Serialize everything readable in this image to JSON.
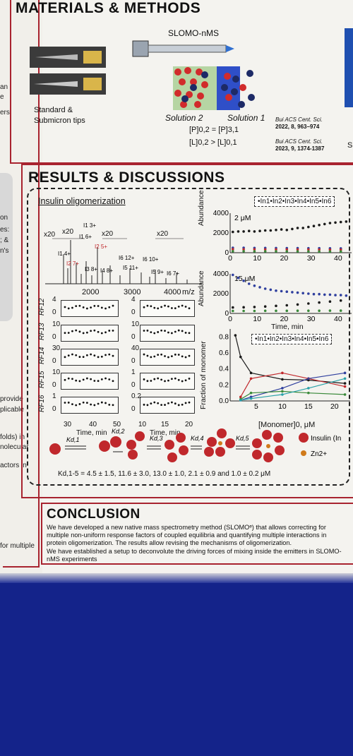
{
  "left_column": {
    "snippets": [
      "an",
      "e",
      "ers",
      "on",
      "es:",
      "; &",
      "n's",
      "provide",
      "plicable",
      "folds) in",
      "nolecular",
      "actors  in",
      "for multiple"
    ]
  },
  "methods": {
    "heading": "MATERIALS  & METHODS",
    "device_label": "SLOMO-nMS",
    "tips_label_1": "Standard &",
    "tips_label_2": "Submicron tips",
    "solution2": "Solution 2",
    "solution1": "Solution 1",
    "eq1": "[P]0,2 = [P]3,1",
    "eq2": "[L]0,2 > [L]0,1",
    "ref1_a": "Bui ACS Cent. Sci.",
    "ref1_b": "2022, 8, 963–974",
    "ref2_a": "Bui ACS Cent. Sci.",
    "ref2_b": "2023, 9, 1374-1387",
    "right_edge": "S"
  },
  "results": {
    "heading": "RESULTS & DISCUSSIONS",
    "subheading": "Insulin oligomerization",
    "ms_scale_labels": [
      "x20",
      "x20",
      "x20",
      "x20"
    ],
    "ms_axis": {
      "ticks": [
        "2000",
        "3000",
        "4000"
      ],
      "unit": "m/z"
    },
    "ms_peaks_labels": [
      "I1 3+",
      "I1 4+",
      "I1 6+",
      "I2 5+",
      "I2 7+",
      "I3 8+",
      "I4 8+",
      "I6 12+",
      "I5 11+",
      "I6 10+",
      "I5 9+",
      "I6 7+"
    ],
    "rf_panels_left": [
      {
        "label": "RF12",
        "ymax": "4",
        "ymin": "0"
      },
      {
        "label": "RF13",
        "ymax": "10",
        "ymin": "0"
      },
      {
        "label": "RF14",
        "ymax": "30",
        "ymin": "0"
      },
      {
        "label": "RF15",
        "ymax": "10",
        "ymin": "0"
      },
      {
        "label": "RF16",
        "ymax": "1",
        "ymin": "0"
      }
    ],
    "rf_panels_right": [
      {
        "ymax": "4",
        "ymin": "0"
      },
      {
        "ymax": "10",
        "ymin": "0"
      },
      {
        "ymax": "40",
        "ymin": "0"
      },
      {
        "ymax": "1",
        "ymin": "0"
      },
      {
        "ymax": "0.2",
        "ymin": "0"
      }
    ],
    "rf_xticks_left": [
      "30",
      "40",
      "50"
    ],
    "rf_xticks_right": [
      "10",
      "15",
      "20"
    ],
    "rf_xlabel": "Time, min",
    "legend_top": "•In1•In2•In3•In4•In5•In6",
    "legend_mid": "•In1•In2•In3•In4•In5•In6",
    "abundance_label": "Abundance",
    "monomer_label": "Fraction of monomer",
    "monomer_xlabel": "[Monomer]0, μM",
    "time_label": "Time, min",
    "colors": {
      "red": "#c0282c",
      "blue": "#2f3f9e",
      "black": "#1a1a1a",
      "green": "#3a8a3a",
      "teal": "#2aa2a8",
      "orange": "#d07a1a"
    }
  },
  "chart_data": [
    {
      "type": "scatter",
      "title": "2 μM",
      "xlabel": "",
      "ylabel": "Abundance",
      "xlim": [
        0,
        45
      ],
      "ylim": [
        0,
        4000
      ],
      "yticks": [
        "4000",
        "2000",
        "0"
      ],
      "xticks": [
        "0",
        "10",
        "20",
        "30",
        "40"
      ],
      "series": [
        {
          "color": "#1a1a1a",
          "x": [
            1,
            3,
            5,
            7,
            9,
            11,
            13,
            15,
            17,
            19,
            21,
            23,
            25,
            27,
            29,
            31,
            33,
            35,
            37,
            39,
            41,
            43
          ],
          "y": [
            2100,
            2150,
            2150,
            2200,
            2150,
            2200,
            2250,
            2250,
            2300,
            2350,
            2300,
            2400,
            2500,
            2500,
            2600,
            2700,
            2800,
            2900,
            3000,
            3050,
            3100,
            3150
          ]
        },
        {
          "color": "#2f3f9e",
          "x": [
            1,
            5,
            9,
            13,
            17,
            21,
            25,
            29,
            33,
            37,
            41
          ],
          "y": [
            500,
            500,
            480,
            480,
            470,
            460,
            460,
            450,
            450,
            440,
            430
          ]
        },
        {
          "color": "#c0282c",
          "x": [
            1,
            5,
            9,
            13,
            17,
            21,
            25,
            29,
            33,
            37,
            41
          ],
          "y": [
            350,
            340,
            340,
            330,
            330,
            320,
            320,
            320,
            310,
            300,
            300
          ]
        },
        {
          "color": "#3a8a3a",
          "x": [
            1,
            5,
            9,
            13,
            17,
            21,
            25,
            29,
            33,
            37,
            41
          ],
          "y": [
            150,
            150,
            140,
            140,
            140,
            130,
            130,
            130,
            120,
            120,
            120
          ]
        }
      ]
    },
    {
      "type": "scatter",
      "title": "15 μM",
      "xlabel": "Time, min",
      "ylabel": "Abundance",
      "xlim": [
        0,
        45
      ],
      "ylim": [
        0,
        4000
      ],
      "yticks": [
        "4000",
        "2000",
        "0"
      ],
      "xticks": [
        "0",
        "10",
        "20",
        "30",
        "40"
      ],
      "series": [
        {
          "color": "#2f3f9e",
          "x": [
            1,
            3,
            5,
            7,
            9,
            11,
            13,
            15,
            17,
            19,
            21,
            23,
            25,
            27,
            29,
            31,
            33,
            35,
            37,
            39,
            41,
            43
          ],
          "y": [
            3900,
            3600,
            3300,
            3000,
            2800,
            2650,
            2500,
            2400,
            2300,
            2250,
            2200,
            2150,
            2100,
            2050,
            2000,
            1950,
            1950,
            1900,
            1900,
            1850,
            1850,
            1800
          ]
        },
        {
          "color": "#1a1a1a",
          "x": [
            1,
            5,
            9,
            13,
            17,
            21,
            25,
            29,
            33,
            37,
            41
          ],
          "y": [
            600,
            620,
            650,
            700,
            760,
            820,
            900,
            1000,
            1100,
            1200,
            1300
          ]
        },
        {
          "color": "#3a8a3a",
          "x": [
            1,
            5,
            9,
            13,
            17,
            21,
            25,
            29,
            33,
            37,
            41
          ],
          "y": [
            250,
            250,
            250,
            260,
            260,
            260,
            270,
            270,
            270,
            280,
            280
          ]
        }
      ]
    },
    {
      "type": "scatter",
      "title": "",
      "xlabel": "[Monomer]0, μM",
      "ylabel": "Fraction of monomer",
      "xlim": [
        0,
        23
      ],
      "ylim": [
        0,
        0.9
      ],
      "yticks": [
        "0.8",
        "0.6",
        "0.4",
        "0.2",
        "0.0"
      ],
      "xticks": [
        "5",
        "10",
        "15",
        "20"
      ],
      "series": [
        {
          "color": "#1a1a1a",
          "x": [
            1,
            2,
            4,
            10,
            15,
            22
          ],
          "y": [
            0.82,
            0.55,
            0.35,
            0.27,
            0.26,
            0.22
          ]
        },
        {
          "color": "#c0282c",
          "x": [
            2,
            4,
            10,
            15,
            22
          ],
          "y": [
            0.05,
            0.28,
            0.35,
            0.28,
            0.18
          ]
        },
        {
          "color": "#2f3f9e",
          "x": [
            2,
            4,
            10,
            15,
            22
          ],
          "y": [
            0.01,
            0.05,
            0.16,
            0.28,
            0.35
          ]
        },
        {
          "color": "#3a8a3a",
          "x": [
            2,
            4,
            10,
            15,
            22
          ],
          "y": [
            0.02,
            0.1,
            0.12,
            0.1,
            0.08
          ]
        },
        {
          "color": "#2aa2a8",
          "x": [
            2,
            4,
            10,
            15,
            22
          ],
          "y": [
            0.01,
            0.03,
            0.08,
            0.16,
            0.28
          ]
        }
      ]
    }
  ],
  "scheme": {
    "k_labels": [
      "Kd,1",
      "Kd,2",
      "Kd,3",
      "Kd,4",
      "Kd,5"
    ],
    "legend_insulin": "Insulin (In",
    "legend_zn": "Zn2+",
    "kd_values": "Kd,1-5 = 4.5 ± 1.5, 11.6 ± 3.0, 13.0 ± 1.0, 2.1 ± 0.9 and 1.0 ± 0.2 μM"
  },
  "conclusion": {
    "heading": "CONCLUSION",
    "para1": "We have developed a new native mass spectrometry method (SLOMOᵉ) that allows correcting for multiple non-uniform response factors of coupled equilibria and quantifying multiple interactions in protein oligomerization. The results allow revising the mechanisms of oligomerization.",
    "para2": "We have established a setup to deconvolute the driving forces of mixing inside the emitters in SLOMO-nMS experiments"
  }
}
